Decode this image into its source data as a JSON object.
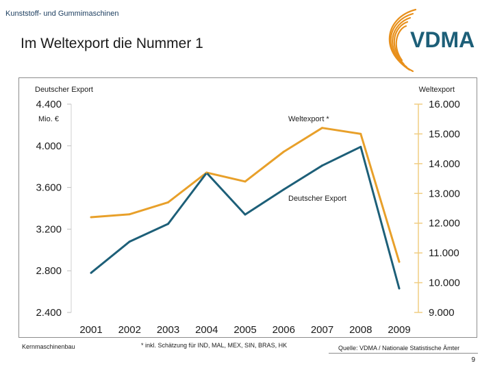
{
  "header": {
    "kicker": "Kunststoff- und Gummimaschinen",
    "title": "Im Weltexport die Nummer 1"
  },
  "logo": {
    "text": "VDMA",
    "color": "#1d5f78",
    "arc_color": "#e8901c"
  },
  "colors": {
    "export_de": "#1d5f78",
    "export_world": "#e8a02a",
    "axis_right": "#f0cd82"
  },
  "chart_data": {
    "type": "line",
    "categories": [
      "2001",
      "2002",
      "2003",
      "2004",
      "2005",
      "2006",
      "2007",
      "2008",
      "2009"
    ],
    "left_axis": {
      "label": "Deutscher Export",
      "unit": "Mio. €",
      "ylim": [
        2400,
        4400
      ],
      "ticks": [
        "2.400",
        "2.800",
        "3.200",
        "3.600",
        "4.000",
        "4.400"
      ],
      "tick_values": [
        2400,
        2800,
        3200,
        3600,
        4000,
        4400
      ]
    },
    "right_axis": {
      "label": "Weltexport",
      "ylim": [
        9000,
        16000
      ],
      "ticks": [
        "9.000",
        "10.000",
        "11.000",
        "12.000",
        "13.000",
        "14.000",
        "15.000",
        "16.000"
      ],
      "tick_values": [
        9000,
        10000,
        11000,
        12000,
        13000,
        14000,
        15000,
        16000
      ]
    },
    "series": [
      {
        "name": "Deutscher Export",
        "axis": "left",
        "values": [
          2780,
          3080,
          3250,
          3740,
          3340,
          3580,
          3810,
          3990,
          2630
        ]
      },
      {
        "name": "Weltexport *",
        "axis": "right",
        "values": [
          12200,
          12300,
          12700,
          13700,
          13400,
          14400,
          15200,
          15000,
          10700
        ]
      }
    ],
    "grid": false
  },
  "footer": {
    "left": "Kernmaschinenbau",
    "note": "* inkl. Schätzung für IND, MAL, MEX, SIN, BRAS, HK",
    "source": "Quelle: VDMA / Nationale Statistische Ämter",
    "page": "9"
  }
}
